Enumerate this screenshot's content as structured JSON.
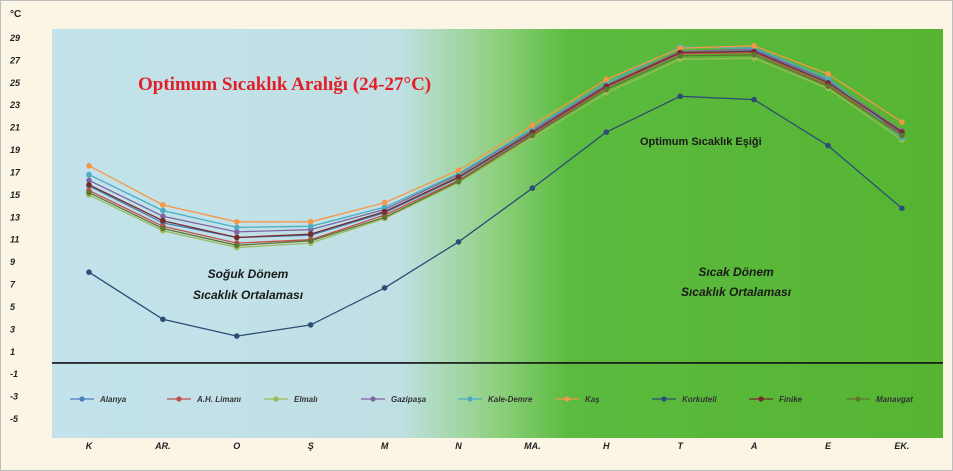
{
  "chart_data": {
    "type": "line",
    "unit_label": "°C",
    "title": "Optimum Sıcaklık Aralığı (24-27°C)",
    "categories": [
      "K",
      "AR.",
      "O",
      "Ş",
      "M",
      "N",
      "MA.",
      "H",
      "T",
      "A",
      "E",
      "EK."
    ],
    "ylim": [
      -5,
      29
    ],
    "yticks": [
      29,
      27,
      25,
      23,
      21,
      19,
      17,
      15,
      13,
      11,
      9,
      7,
      5,
      3,
      1,
      -1,
      -3,
      -5
    ],
    "annotations": {
      "threshold": "Optimum Sıcaklık Eşiği",
      "cold_line1": "Soğuk Dönem",
      "cold_line2": "Sıcaklık Ortalaması",
      "warm_line1": "Sıcak Dönem",
      "warm_line2": "Sıcaklık  Ortalaması"
    },
    "legend_position": "bottom",
    "series": [
      {
        "name": "Alanya",
        "color": "#4a7ebb",
        "values": [
          15.8,
          12.5,
          11.2,
          11.4,
          13.4,
          16.5,
          20.5,
          24.6,
          27.6,
          27.9,
          25.1,
          20.5
        ]
      },
      {
        "name": "A.H. Limanı",
        "color": "#c0504d",
        "values": [
          15.4,
          12.2,
          10.7,
          11.0,
          13.2,
          16.3,
          20.4,
          24.6,
          27.6,
          27.7,
          24.8,
          20.4
        ]
      },
      {
        "name": "Elmalı",
        "color": "#9bbb59",
        "values": [
          15.0,
          11.8,
          10.3,
          10.7,
          12.9,
          16.1,
          20.1,
          24.1,
          27.1,
          27.2,
          24.5,
          19.9
        ]
      },
      {
        "name": "Gazipaşa",
        "color": "#8064a2",
        "values": [
          16.3,
          13.1,
          11.7,
          11.9,
          13.7,
          16.8,
          20.8,
          24.8,
          27.8,
          28.0,
          25.2,
          20.7
        ]
      },
      {
        "name": "Kale-Demre",
        "color": "#4bacc6",
        "values": [
          16.8,
          13.6,
          12.1,
          12.2,
          13.9,
          16.9,
          20.9,
          25.0,
          28.2,
          28.1,
          25.4,
          20.1
        ]
      },
      {
        "name": "Kaş",
        "color": "#f79646",
        "values": [
          17.6,
          14.1,
          12.6,
          12.6,
          14.3,
          17.2,
          21.2,
          25.3,
          28.1,
          28.3,
          25.8,
          21.5
        ]
      },
      {
        "name": "Korkuteli",
        "color": "#2c4d75",
        "values": [
          8.1,
          3.9,
          2.4,
          3.4,
          6.7,
          10.8,
          15.6,
          20.6,
          23.8,
          23.5,
          19.4,
          13.8
        ]
      },
      {
        "name": "Finike",
        "color": "#772c2a",
        "values": [
          15.9,
          12.7,
          11.2,
          11.5,
          13.5,
          16.6,
          20.6,
          24.7,
          27.7,
          27.8,
          25.0,
          20.6
        ]
      },
      {
        "name": "Manavgat",
        "color": "#5f7530",
        "values": [
          15.2,
          12.0,
          10.5,
          10.9,
          13.0,
          16.2,
          20.3,
          24.4,
          27.4,
          27.5,
          24.7,
          20.3
        ]
      }
    ]
  }
}
